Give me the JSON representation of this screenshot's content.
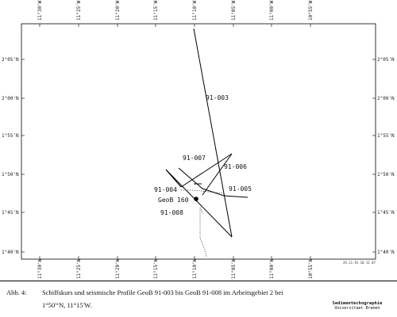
{
  "map": {
    "lon_labels": [
      "11°30'W",
      "11°25'W",
      "11°20'W",
      "11°15'W",
      "11°10'W",
      "11°05'W",
      "11°00'W",
      "10°55'W"
    ],
    "lat_labels_left": [
      "1°40'N",
      "1°45'N",
      "1°50'N",
      "1°55'N",
      "2°00'N",
      "2°05'N"
    ],
    "lat_labels_right": [
      "1°40'N",
      "1°45'N",
      "1°50'N",
      "1°55'N",
      "2°00'N",
      "2°05'N"
    ],
    "profiles": [
      {
        "label": "91-003"
      },
      {
        "label": "91-006"
      },
      {
        "label": "91-007"
      },
      {
        "label": "91-004"
      },
      {
        "label": "91-005"
      },
      {
        "label": "91-008"
      }
    ],
    "station": {
      "label": "GeoB 160"
    },
    "stamp": "29.11.91  10 11 07"
  },
  "caption": {
    "fig_no": "Abb. 4:",
    "line1": "Schiffskurs und seismische Profile GeoB 91-003 bis GeoB 91-008 im Arbeitsgebiet 2 bei",
    "line2": "1°50'°N, 11°15'W."
  },
  "institute": {
    "line1": "Sedimentechographie",
    "line2": "Universitaet Bremen"
  }
}
